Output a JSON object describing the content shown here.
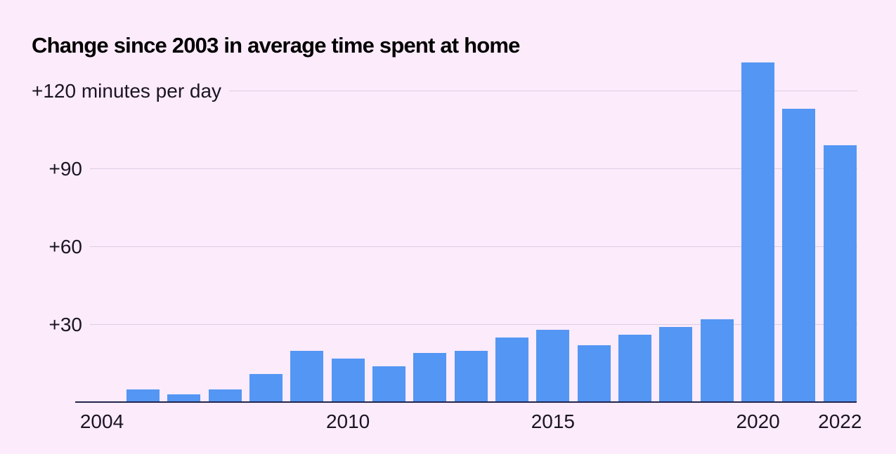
{
  "page": {
    "background": "#fcebfb"
  },
  "chart_data": {
    "type": "bar",
    "title": "Change since 2003 in average time spent at home",
    "xlabel": "",
    "ylabel": "minutes per day",
    "unit_label": "+120 minutes per day",
    "categories": [
      2004,
      2005,
      2006,
      2007,
      2008,
      2009,
      2010,
      2011,
      2012,
      2013,
      2014,
      2015,
      2016,
      2017,
      2018,
      2019,
      2020,
      2021,
      2022
    ],
    "values": [
      0,
      5,
      3,
      5,
      11,
      20,
      17,
      14,
      19,
      20,
      25,
      28,
      22,
      26,
      29,
      32,
      131,
      113,
      99
    ],
    "ylim": [
      0,
      135
    ],
    "grid": "horizontal",
    "legend": "none",
    "y_ticks": [
      {
        "value": 30,
        "label": "+30"
      },
      {
        "value": 60,
        "label": "+60"
      },
      {
        "value": 90,
        "label": "+90"
      },
      {
        "value": 120,
        "label": "+120 minutes per day"
      }
    ],
    "x_ticks": [
      {
        "value": 2004,
        "label": "2004"
      },
      {
        "value": 2010,
        "label": "2010"
      },
      {
        "value": 2015,
        "label": "2015"
      },
      {
        "value": 2020,
        "label": "2020"
      },
      {
        "value": 2022,
        "label": "2022"
      }
    ],
    "colors": {
      "bar": "#5396f3",
      "background": "#fcebfb",
      "gridline": "#ddcde2",
      "axis": "#23234d",
      "text": "#1a1523",
      "title": "#000000"
    }
  }
}
